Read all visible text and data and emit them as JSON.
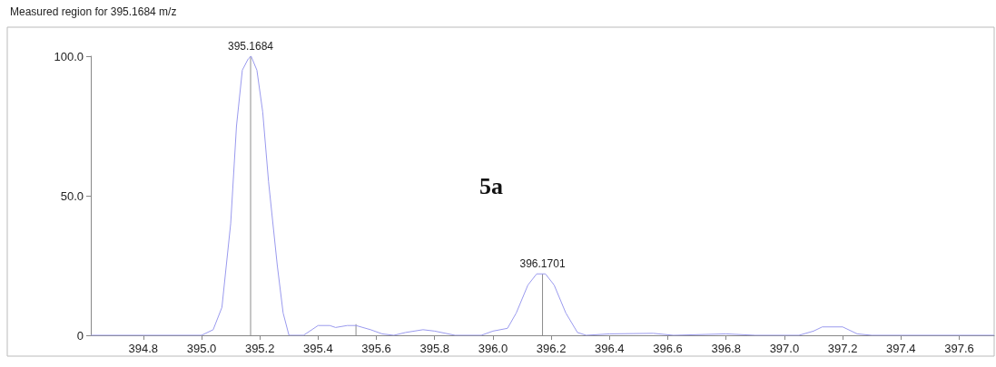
{
  "chart_data": {
    "type": "line",
    "title": "Measured region for 395.1684 m/z",
    "annotations": [
      "5a",
      {
        "text": "395.1684",
        "x": 395.1684,
        "y": 100
      },
      {
        "text": "396.1701",
        "x": 396.1701,
        "y": 22
      }
    ],
    "xlim": [
      394.62,
      397.72
    ],
    "ylim": [
      0,
      100
    ],
    "xticks": [
      394.8,
      {
        "value": 395,
        "label": "395.0"
      },
      395.2,
      395.4,
      395.6,
      395.8,
      {
        "value": 396,
        "label": "396.0"
      },
      396.2,
      396.4,
      396.6,
      396.8,
      {
        "value": 397,
        "label": "397.0"
      },
      397.2,
      397.4,
      397.6
    ],
    "yticks": [
      0,
      {
        "value": 50,
        "label": "50.0"
      },
      {
        "value": 100,
        "label": "100.0"
      }
    ],
    "grid": false,
    "marker": "none",
    "series": [
      {
        "color": "#9a9aee",
        "x": [
          394.62,
          395.0,
          395.04,
          395.07,
          395.1,
          395.12,
          395.14,
          395.16,
          395.17,
          395.19,
          395.21,
          395.23,
          395.26,
          395.28,
          395.3,
          395.35,
          395.4,
          395.44,
          395.46,
          395.5,
          395.53,
          395.58,
          395.62,
          395.66,
          395.7,
          395.76,
          395.8,
          395.87,
          395.96,
          396.0,
          396.05,
          396.08,
          396.12,
          396.15,
          396.18,
          396.21,
          396.25,
          396.29,
          396.32,
          396.4,
          396.55,
          396.62,
          396.8,
          396.9,
          397.05,
          397.1,
          397.13,
          397.2,
          397.25,
          397.3,
          397.72
        ],
        "values": [
          0,
          0,
          2,
          10,
          40,
          75,
          95,
          99,
          100,
          95,
          80,
          55,
          25,
          8,
          0,
          0,
          3.5,
          3.5,
          2.8,
          3.5,
          3.5,
          2,
          0.5,
          0,
          1,
          2,
          1.5,
          0,
          0,
          1.5,
          2.5,
          8,
          18,
          22,
          22,
          18,
          8,
          1,
          0,
          0.5,
          0.7,
          0,
          0.5,
          0,
          0,
          1.5,
          3,
          3,
          0.5,
          0,
          0
        ]
      },
      {
        "type": "bar",
        "color": "#8c8c8c",
        "x": [
          395.1684,
          395.53,
          396.1701
        ],
        "values": [
          100,
          4,
          22
        ]
      }
    ]
  }
}
